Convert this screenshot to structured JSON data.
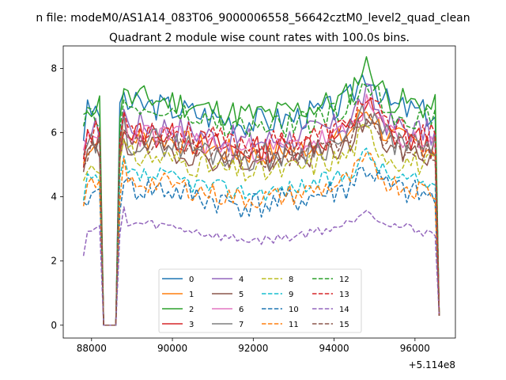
{
  "chart_data": {
    "type": "line",
    "suptitle": "n file: modeM0/AS1A14_083T06_9000006558_56642cztM0_level2_quad_clean",
    "title": "Quadrant 2 module wise count rates with 100.0s bins.",
    "xlabel": "",
    "ylabel": "",
    "offset_label": "+5.114e8",
    "xlim": [
      87300,
      97000
    ],
    "ylim": [
      -0.4,
      8.7
    ],
    "xticks": [
      88000,
      90000,
      92000,
      94000,
      96000
    ],
    "xtick_labels": [
      "88000",
      "90000",
      "92000",
      "94000",
      "96000"
    ],
    "yticks": [
      0,
      2,
      4,
      6,
      8
    ],
    "ytick_labels": [
      "0",
      "2",
      "4",
      "6",
      "8"
    ],
    "legend_position": "lower-center",
    "legend_columns": 4,
    "x_start": 87800,
    "x_step": 100,
    "gap_range": [
      88300,
      88600
    ],
    "x_end": 96600,
    "series": [
      {
        "name": "0",
        "color": "#1f77b4",
        "style": "solid",
        "base": 6.6,
        "amp": 0.45,
        "seed": 3
      },
      {
        "name": "1",
        "color": "#ff7f0e",
        "style": "solid",
        "base": 5.6,
        "amp": 0.4,
        "seed": 7
      },
      {
        "name": "2",
        "color": "#2ca02c",
        "style": "solid",
        "base": 6.8,
        "amp": 0.45,
        "seed": 11
      },
      {
        "name": "3",
        "color": "#d62728",
        "style": "solid",
        "base": 5.7,
        "amp": 0.45,
        "seed": 13
      },
      {
        "name": "4",
        "color": "#9467bd",
        "style": "solid",
        "base": 6.0,
        "amp": 0.45,
        "seed": 17
      },
      {
        "name": "5",
        "color": "#8c564b",
        "style": "solid",
        "base": 5.3,
        "amp": 0.4,
        "seed": 19
      },
      {
        "name": "6",
        "color": "#e377c2",
        "style": "solid",
        "base": 5.7,
        "amp": 0.4,
        "seed": 23
      },
      {
        "name": "7",
        "color": "#7f7f7f",
        "style": "solid",
        "base": 5.5,
        "amp": 0.45,
        "seed": 29
      },
      {
        "name": "8",
        "color": "#bcbd22",
        "style": "dashed",
        "base": 5.0,
        "amp": 0.4,
        "seed": 31
      },
      {
        "name": "9",
        "color": "#17becf",
        "style": "dashed",
        "base": 4.4,
        "amp": 0.3,
        "seed": 37
      },
      {
        "name": "10",
        "color": "#1f77b4",
        "style": "dashed",
        "base": 4.0,
        "amp": 0.45,
        "seed": 41
      },
      {
        "name": "11",
        "color": "#ff7f0e",
        "style": "dashed",
        "base": 4.2,
        "amp": 0.35,
        "seed": 43
      },
      {
        "name": "12",
        "color": "#2ca02c",
        "style": "dashed",
        "base": 6.4,
        "amp": 0.4,
        "seed": 47
      },
      {
        "name": "13",
        "color": "#d62728",
        "style": "dashed",
        "base": 5.9,
        "amp": 0.4,
        "seed": 53
      },
      {
        "name": "14",
        "color": "#9467bd",
        "style": "dashed",
        "base": 2.9,
        "amp": 0.15,
        "seed": 59
      },
      {
        "name": "15",
        "color": "#8c564b",
        "style": "dashed",
        "base": 5.4,
        "amp": 0.35,
        "seed": 61
      }
    ]
  }
}
